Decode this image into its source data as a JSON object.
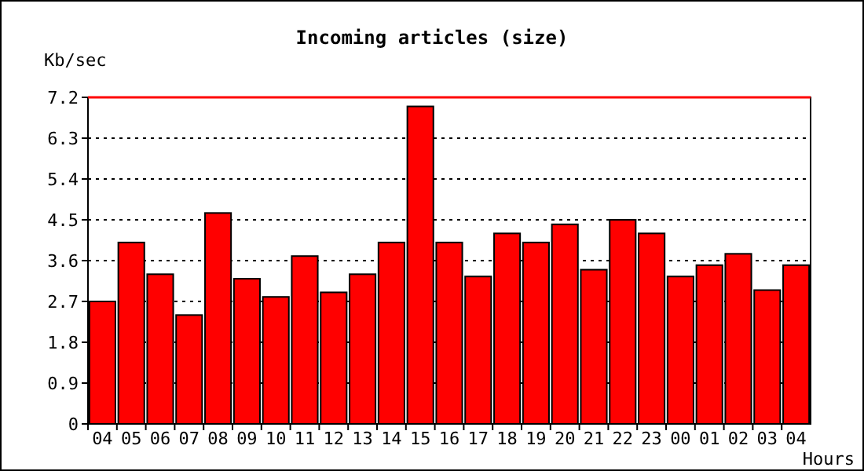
{
  "chart_data": {
    "type": "bar",
    "title": "Incoming articles (size)",
    "xlabel": "Hours",
    "ylabel": "Kb/sec",
    "categories": [
      "04",
      "05",
      "06",
      "07",
      "08",
      "09",
      "10",
      "11",
      "12",
      "13",
      "14",
      "15",
      "16",
      "17",
      "18",
      "19",
      "20",
      "21",
      "22",
      "23",
      "00",
      "01",
      "02",
      "03",
      "04"
    ],
    "values": [
      2.7,
      4.0,
      3.3,
      2.4,
      4.65,
      3.2,
      2.8,
      3.7,
      2.9,
      3.3,
      4.0,
      7.0,
      4.0,
      3.25,
      4.2,
      4.0,
      4.4,
      3.4,
      4.5,
      4.2,
      3.25,
      3.5,
      3.75,
      2.95,
      3.5
    ],
    "color": "#ff0000",
    "ylim": [
      0,
      7.2
    ],
    "yticks": [
      0,
      0.9,
      1.8,
      2.7,
      3.6,
      4.5,
      5.4,
      6.3,
      7.2
    ],
    "grid": "y",
    "ref_lines": [
      {
        "axis": "y",
        "value": 7.2,
        "color": "#ff0000"
      }
    ]
  }
}
